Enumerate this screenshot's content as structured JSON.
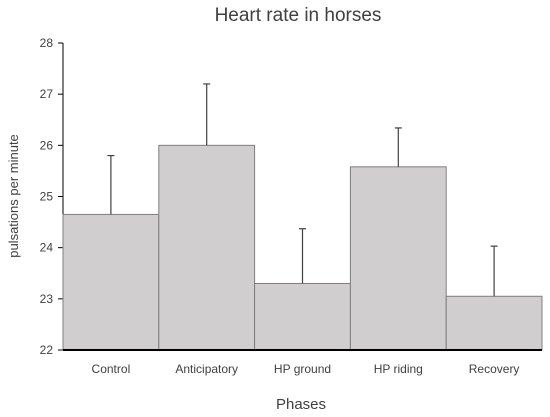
{
  "chart_data": {
    "type": "bar",
    "title": "Heart rate in horses",
    "xlabel": "Phases",
    "ylabel": "pulsations per minute",
    "categories": [
      "Control",
      "Anticipatory",
      "HP ground",
      "HP riding",
      "Recovery"
    ],
    "values": [
      24.65,
      26.0,
      23.3,
      25.58,
      23.05
    ],
    "error_upper": [
      1.15,
      1.2,
      1.07,
      0.76,
      0.98
    ],
    "ylim": [
      22,
      28
    ],
    "yticks": [
      "22",
      "23",
      "24",
      "25",
      "26",
      "27",
      "28"
    ],
    "grid": false,
    "legend": "none",
    "colors": {
      "bar_fill": "#d0cece",
      "bar_stroke": "#7f7f7f",
      "error_bar": "#404040",
      "axis": "#000000",
      "text": "#404040"
    }
  }
}
